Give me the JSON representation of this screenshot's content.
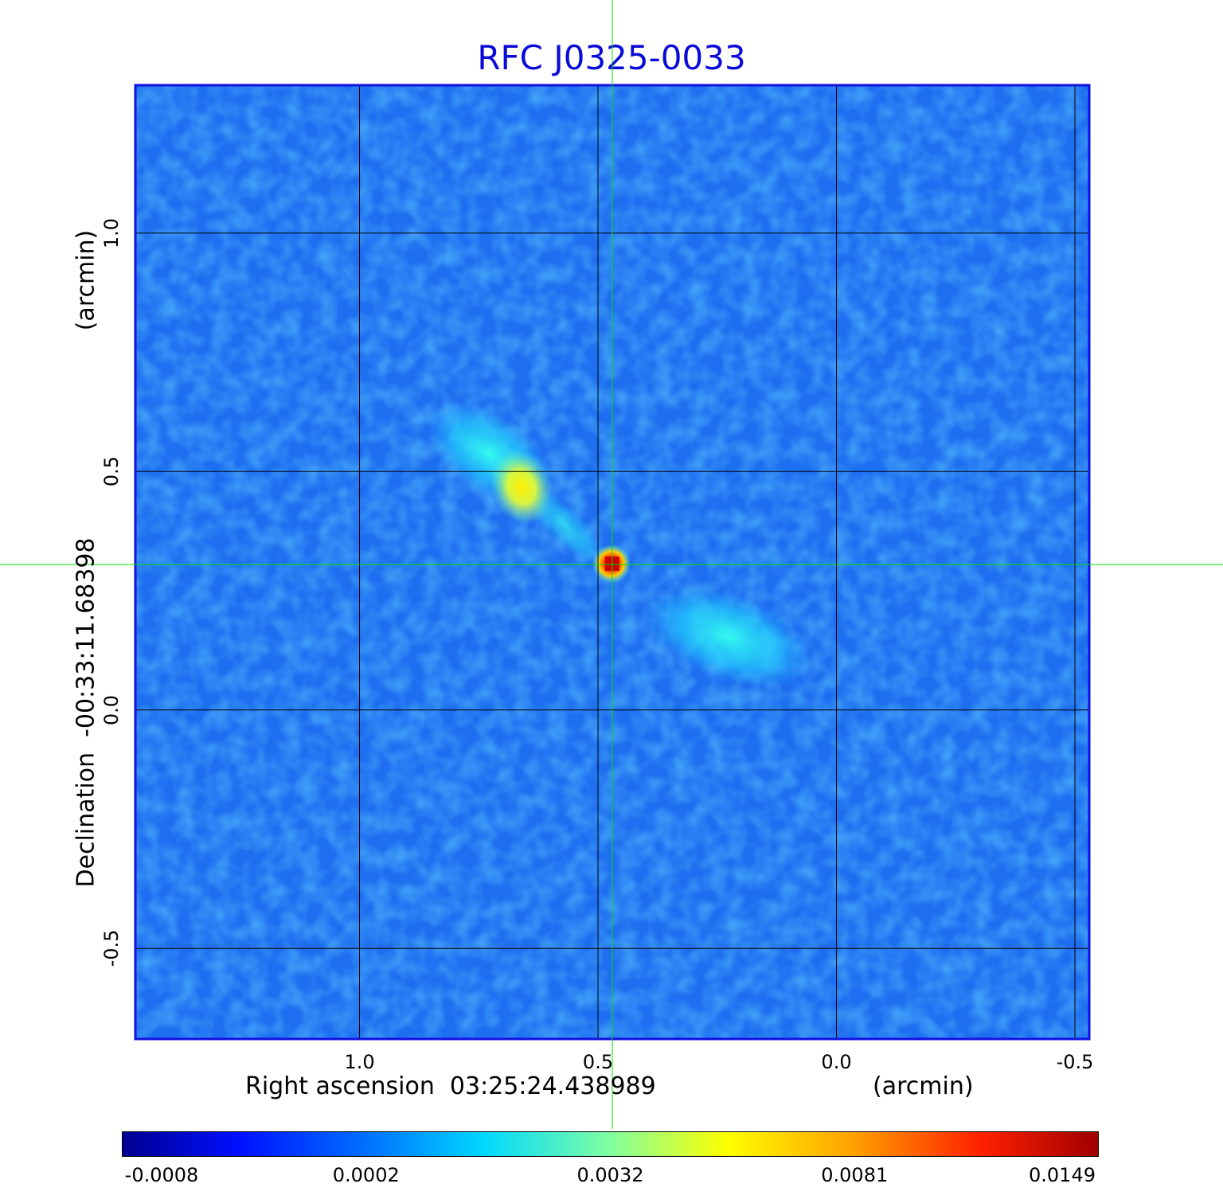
{
  "title": "RFC J0325-0033",
  "x_axis": {
    "label": "Right ascension  03:25:24.438989",
    "unit": "(arcmin)",
    "ticks": [
      {
        "value": 1.0,
        "label": "1.0"
      },
      {
        "value": 0.5,
        "label": "0.5"
      },
      {
        "value": 0.0,
        "label": "0.0"
      },
      {
        "value": -0.5,
        "label": "-0.5"
      }
    ],
    "range": [
      1.47,
      -0.53
    ]
  },
  "y_axis": {
    "label": "Declination  -00:33:11.68398",
    "unit": "(arcmin)",
    "ticks": [
      {
        "value": 1.0,
        "label": "1.0"
      },
      {
        "value": 0.5,
        "label": "0.5"
      },
      {
        "value": 0.0,
        "label": "0.0"
      },
      {
        "value": -0.5,
        "label": "-0.5"
      }
    ],
    "range": [
      -0.69,
      1.31
    ]
  },
  "crosshair": {
    "x": 0.47,
    "y": 0.305,
    "color": "#00e000"
  },
  "grid": true,
  "colorbar": {
    "labels": [
      "-0.0008",
      "0.0002",
      "0.0032",
      "0.0081",
      "0.0149"
    ],
    "colormap": "jet"
  },
  "colors": {
    "title": "#0a0ad8",
    "frame": "#1010e0",
    "background_map": "#1e6ef0"
  }
}
